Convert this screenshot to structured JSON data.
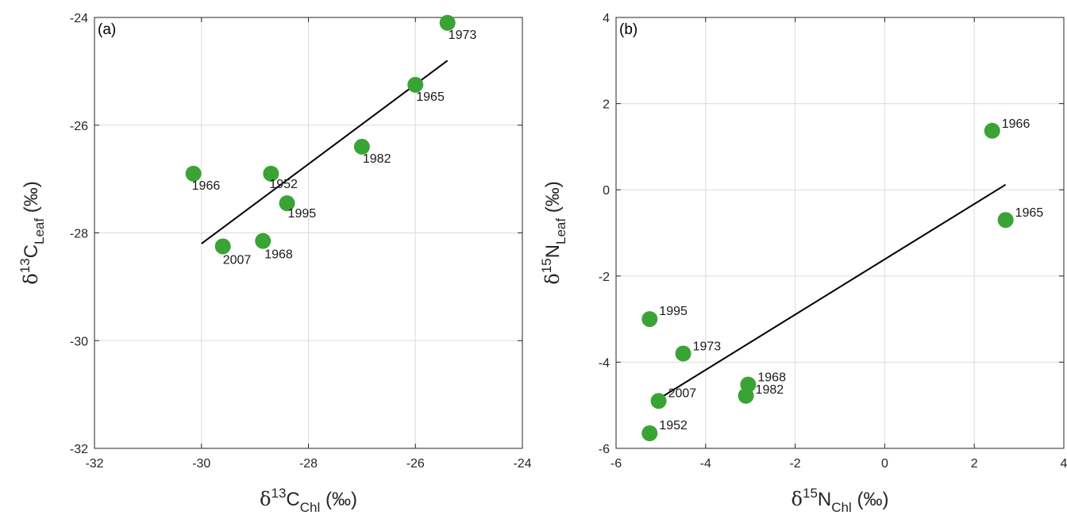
{
  "chart_data": [
    {
      "type": "scatter",
      "panel_label": "(a)",
      "xlabel": {
        "greek": "δ",
        "sup": "13",
        "base": "C",
        "sub": "Chl",
        "unit": " (‰)"
      },
      "ylabel": {
        "greek": "δ",
        "sup": "13",
        "base": "C",
        "sub": "Leaf",
        "unit": " (‰)"
      },
      "xlim": [
        -32,
        -24
      ],
      "ylim": [
        -32,
        -24
      ],
      "xticks": [
        -32,
        -30,
        -28,
        -26,
        -24
      ],
      "yticks": [
        -32,
        -30,
        -28,
        -26,
        -24
      ],
      "grid": true,
      "marker_color": "#3aa335",
      "line_color": "#000000",
      "points": [
        {
          "x": -30.15,
          "y": -26.9,
          "label": "1966"
        },
        {
          "x": -28.7,
          "y": -26.9,
          "label": "1952"
        },
        {
          "x": -28.4,
          "y": -27.45,
          "label": "1995"
        },
        {
          "x": -29.6,
          "y": -28.25,
          "label": "2007"
        },
        {
          "x": -28.85,
          "y": -28.15,
          "label": "1968"
        },
        {
          "x": -27.0,
          "y": -26.4,
          "label": "1982"
        },
        {
          "x": -26.0,
          "y": -25.25,
          "label": "1965"
        },
        {
          "x": -25.4,
          "y": -24.1,
          "label": "1973"
        }
      ],
      "fit_line": {
        "x": [
          -30.0,
          -25.4
        ],
        "y": [
          -28.2,
          -24.8
        ]
      }
    },
    {
      "type": "scatter",
      "panel_label": "(b)",
      "xlabel": {
        "greek": "δ",
        "sup": "15",
        "base": "N",
        "sub": "Chl",
        "unit": " (‰)"
      },
      "ylabel": {
        "greek": "δ",
        "sup": "15",
        "base": "N",
        "sub": "Leaf",
        "unit": " (‰)"
      },
      "xlim": [
        -6,
        4
      ],
      "ylim": [
        -6,
        4
      ],
      "xticks": [
        -6,
        -4,
        -2,
        0,
        2,
        4
      ],
      "yticks": [
        -6,
        -4,
        -2,
        0,
        2,
        4
      ],
      "grid": true,
      "marker_color": "#3aa335",
      "line_color": "#000000",
      "points": [
        {
          "x": 2.4,
          "y": 1.37,
          "label": "1966"
        },
        {
          "x": 2.7,
          "y": -0.7,
          "label": "1965"
        },
        {
          "x": -5.25,
          "y": -3.0,
          "label": "1995"
        },
        {
          "x": -4.5,
          "y": -3.8,
          "label": "1973"
        },
        {
          "x": -3.05,
          "y": -4.52,
          "label": "1968"
        },
        {
          "x": -3.1,
          "y": -4.78,
          "label": "1982"
        },
        {
          "x": -5.05,
          "y": -4.9,
          "label": "2007"
        },
        {
          "x": -5.25,
          "y": -5.65,
          "label": "1952"
        }
      ],
      "fit_line": {
        "x": [
          -5.2,
          2.7
        ],
        "y": [
          -4.95,
          0.12
        ]
      }
    }
  ]
}
